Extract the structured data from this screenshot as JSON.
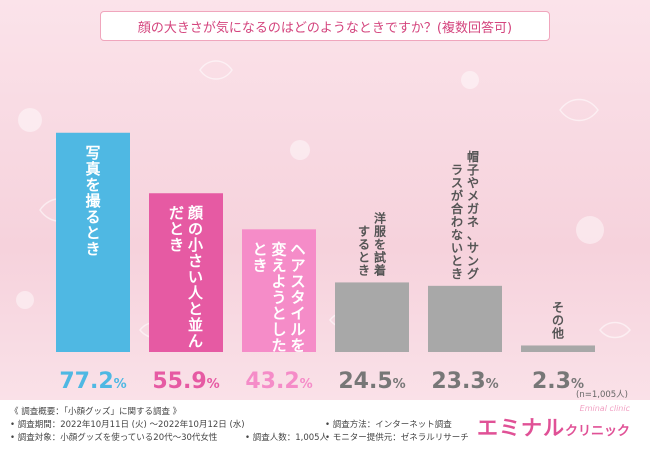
{
  "title": "顔の大きさが気になるのはどのようなときですか？(複数回答可)",
  "chart_data": {
    "type": "bar",
    "categories": [
      "写真を撮るとき",
      "顔の小さい人と並んだとき",
      "ヘアスタイルを変えようとしたとき",
      "洋服を試着するとき",
      "帽子やメガネ、サングラスが合わないとき",
      "その他"
    ],
    "values": [
      77.2,
      55.9,
      43.2,
      24.5,
      23.3,
      2.3
    ],
    "value_labels": [
      "77.2%",
      "55.9%",
      "43.2%",
      "24.5%",
      "23.3%",
      "2.3%"
    ],
    "colors": [
      "#4fb8e3",
      "#e65aa3",
      "#f58cc8",
      "#a8a8a8",
      "#a8a8a8",
      "#a8a8a8"
    ],
    "label_colors": [
      "#4fb8e3",
      "#e65aa3",
      "#f58cc8",
      "#777777",
      "#777777",
      "#777777"
    ],
    "ylim": [
      0,
      100
    ],
    "grid": false,
    "legend": "none",
    "sample_note": "(n=1,005人)"
  },
  "survey": {
    "heading": "《 調査概要：「小顔グッズ」に関する調査 》",
    "period": "• 調査期間：2022年10月11日 (火) ～2022年10月12日 (水)",
    "method": "• 調査方法：インターネット調査",
    "target": "• 調査対象：小顔グッズを使っている20代～30代女性",
    "count": "• 調査人数：1,005人",
    "provider": "• モニター提供元：ゼネラルリサーチ"
  },
  "brand": {
    "main": "エミナル",
    "sub": "クリニック",
    "script": "Eminal clinic"
  }
}
